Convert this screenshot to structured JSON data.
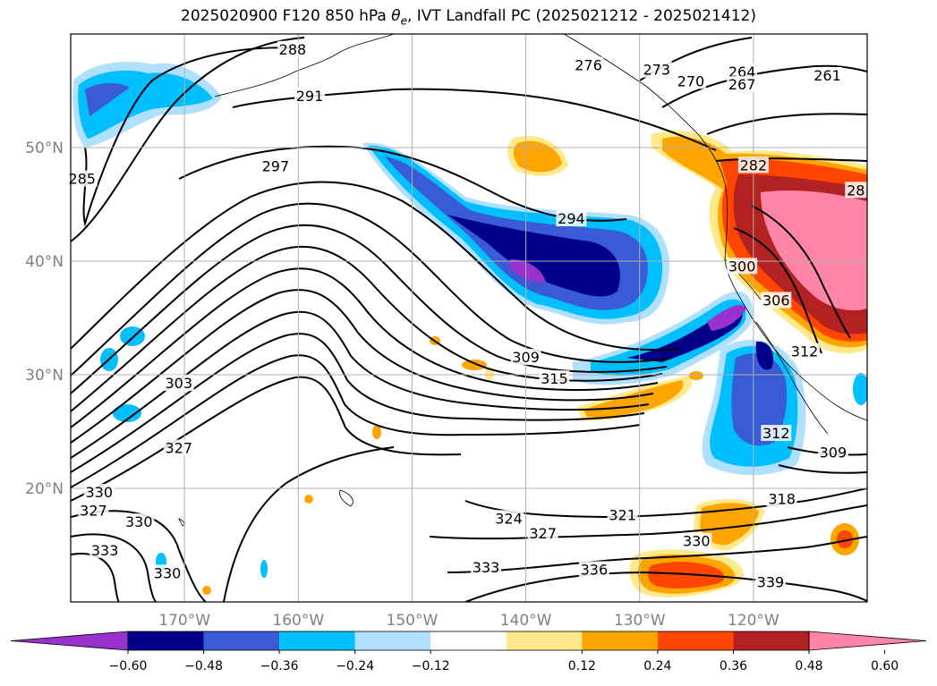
{
  "chart_data": {
    "type": "heatmap",
    "title_parts": {
      "pre": "2025020900 F120 850 hPa ",
      "theta": "θ",
      "sub": "e",
      "post": ", IVT Landfall PC (2025021212 - 2025021412)"
    },
    "x_ticks": [
      "170°W",
      "160°W",
      "150°W",
      "140°W",
      "130°W",
      "120°W"
    ],
    "x_tick_values": [
      -170,
      -160,
      -150,
      -140,
      -130,
      -120
    ],
    "y_ticks": [
      "50°N",
      "40°N",
      "30°N",
      "20°N"
    ],
    "y_tick_values": [
      50,
      40,
      30,
      20
    ],
    "xlim": [
      -180,
      -110
    ],
    "ylim": [
      10,
      60
    ],
    "grid": true,
    "colorbar": {
      "ticks": [
        "−0.60",
        "−0.48",
        "−0.36",
        "−0.24",
        "−0.12",
        "0.12",
        "0.24",
        "0.36",
        "0.48",
        "0.60"
      ],
      "bins": [
        {
          "range": "<-0.60",
          "color": "#9932cc"
        },
        {
          "range": "-0.60 to -0.48",
          "color": "#00008b"
        },
        {
          "range": "-0.48 to -0.36",
          "color": "#3a5bd6"
        },
        {
          "range": "-0.36 to -0.24",
          "color": "#00bfff"
        },
        {
          "range": "-0.24 to -0.12",
          "color": "#b0e0ff"
        },
        {
          "range": "-0.12 to 0.12",
          "color": "#ffffff"
        },
        {
          "range": "0.12 to 0.24",
          "color": "#ffe98a"
        },
        {
          "range": "0.24 to 0.36",
          "color": "#ffa500"
        },
        {
          "range": "0.36 to 0.48",
          "color": "#ff4500"
        },
        {
          "range": "0.48 to 0.60",
          "color": "#b22222"
        },
        {
          "range": ">0.60",
          "color": "#ff85a8"
        }
      ]
    },
    "contour_labels": [
      {
        "text": "288",
        "lon": -160.5,
        "lat": 58.6
      },
      {
        "text": "276",
        "lon": -134.5,
        "lat": 57.2
      },
      {
        "text": "273",
        "lon": -128.5,
        "lat": 56.8
      },
      {
        "text": "270",
        "lon": -125.5,
        "lat": 55.8
      },
      {
        "text": "264",
        "lon": -121.0,
        "lat": 56.6
      },
      {
        "text": "267",
        "lon": -121.0,
        "lat": 55.5
      },
      {
        "text": "261",
        "lon": -113.5,
        "lat": 56.3
      },
      {
        "text": "291",
        "lon": -159.0,
        "lat": 54.5
      },
      {
        "text": "297",
        "lon": -162.0,
        "lat": 48.3
      },
      {
        "text": "294",
        "lon": -136.0,
        "lat": 43.7
      },
      {
        "text": "285",
        "lon": -179.0,
        "lat": 47.2
      },
      {
        "text": "282",
        "lon": -120.0,
        "lat": 48.4
      },
      {
        "text": "28",
        "lon": -111.0,
        "lat": 46.2
      },
      {
        "text": "300",
        "lon": -121.0,
        "lat": 39.5
      },
      {
        "text": "306",
        "lon": -118.0,
        "lat": 36.5
      },
      {
        "text": "312",
        "lon": -115.5,
        "lat": 32.0
      },
      {
        "text": "309",
        "lon": -140.0,
        "lat": 31.5
      },
      {
        "text": "315",
        "lon": -137.5,
        "lat": 29.6
      },
      {
        "text": "303",
        "lon": -170.5,
        "lat": 29.2
      },
      {
        "text": "327",
        "lon": -170.5,
        "lat": 23.5
      },
      {
        "text": "330",
        "lon": -177.5,
        "lat": 19.6
      },
      {
        "text": "327",
        "lon": -178.0,
        "lat": 18.0
      },
      {
        "text": "330",
        "lon": -174.0,
        "lat": 17.0
      },
      {
        "text": "333",
        "lon": -177.0,
        "lat": 14.5
      },
      {
        "text": "330",
        "lon": -171.5,
        "lat": 12.5
      },
      {
        "text": "333",
        "lon": -143.5,
        "lat": 13.0
      },
      {
        "text": "336",
        "lon": -134.0,
        "lat": 12.8
      },
      {
        "text": "324",
        "lon": -141.5,
        "lat": 17.3
      },
      {
        "text": "327",
        "lon": -138.5,
        "lat": 16.0
      },
      {
        "text": "321",
        "lon": -131.5,
        "lat": 17.6
      },
      {
        "text": "330",
        "lon": -125.0,
        "lat": 15.3
      },
      {
        "text": "318",
        "lon": -117.5,
        "lat": 19.0
      },
      {
        "text": "312",
        "lon": -118.0,
        "lat": 24.8
      },
      {
        "text": "309",
        "lon": -113.0,
        "lat": 23.1
      },
      {
        "text": "339",
        "lon": -118.5,
        "lat": 11.7
      }
    ]
  }
}
